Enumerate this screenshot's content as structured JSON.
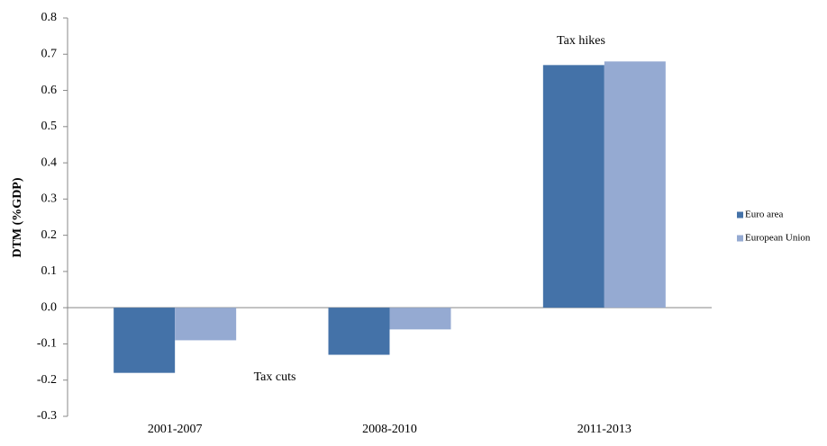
{
  "chart_data": {
    "type": "bar",
    "y_label": "DTM (%GDP)",
    "annotations": [
      "Tax hikes",
      "Tax cuts"
    ],
    "categories": [
      "2001-2007",
      "2008-2010",
      "2011-2013"
    ],
    "series": [
      {
        "name": "Euro area",
        "color": "#4472a8",
        "values": [
          -0.18,
          -0.13,
          0.67
        ]
      },
      {
        "name": "European Union",
        "color": "#95aad2",
        "values": [
          -0.09,
          -0.06,
          0.68
        ]
      }
    ],
    "ylim": [
      -0.3,
      0.8
    ],
    "yticks": [
      -0.3,
      -0.2,
      -0.1,
      {
        "value": 0,
        "label": "0.0"
      },
      0.1,
      0.2,
      0.3,
      0.4,
      0.5,
      0.6,
      0.7,
      0.8
    ],
    "grid": false,
    "legend": "right"
  }
}
